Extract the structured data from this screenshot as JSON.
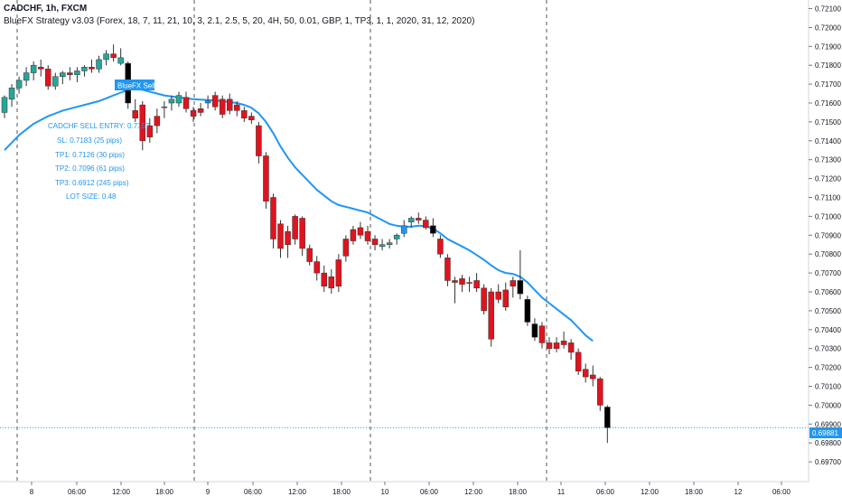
{
  "header": {
    "title": "CADCHF, 1h, FXCM",
    "indicator": "BlueFX Strategy v3.03 (Forex, 18, 7, 11, 21, 10, 3, 2.1, 2.5, 5, 20, 4H, 50, 0.01, GBP, 1, TP3, 1, 1, 2020, 31, 12, 2020)"
  },
  "colors": {
    "bull": "#26a69a",
    "bear": "#e0141e",
    "black": "#000000",
    "blue": "#2196f3",
    "ma": "#2196f3",
    "price_line": "#2196f3",
    "axis_text": "#131722",
    "session_line": "#555555"
  },
  "price_axis": {
    "labels": [
      "0.72100",
      "0.72000",
      "0.71900",
      "0.71800",
      "0.71700",
      "0.71600",
      "0.71500",
      "0.71400",
      "0.71300",
      "0.71200",
      "0.71100",
      "0.71000",
      "0.70900",
      "0.70800",
      "0.70700",
      "0.70600",
      "0.70500",
      "0.70400",
      "0.70300",
      "0.70200",
      "0.70100",
      "0.70000",
      "0.69900",
      "0.69800",
      "0.69700"
    ]
  },
  "time_axis": {
    "labels": [
      "8",
      "06:00",
      "12:00",
      "18:00",
      "9",
      "06:00",
      "12:00",
      "18:00",
      "10",
      "06:00",
      "12:00",
      "18:00",
      "11",
      "06:00",
      "12:00",
      "18:00",
      "12",
      "06:00"
    ]
  },
  "current_price": "0.69881",
  "annotations": {
    "signal_label": "BlueFX Sell",
    "entry": "CADCHF SELL ENTRY: 0.7157",
    "sl": "SL: 0.7183 (25 pips)",
    "tp1": "TP1: 0.7126 (30 pips)",
    "tp2": "TP2: 0.7096 (61 pips)",
    "tp3": "TP3: 0.6912 (245 pips)",
    "lot": "LOT SIZE: 0.48"
  },
  "chart_data": {
    "type": "candlestick",
    "timeframe": "1h",
    "y_range": [
      0.6965,
      0.7215
    ],
    "grid": false,
    "candles": [
      {
        "o": 0.7155,
        "h": 0.7164,
        "l": 0.7152,
        "c": 0.7163,
        "col": "bull"
      },
      {
        "o": 0.7162,
        "h": 0.717,
        "l": 0.7158,
        "c": 0.7168,
        "col": "bull"
      },
      {
        "o": 0.7168,
        "h": 0.7174,
        "l": 0.7165,
        "c": 0.7172,
        "col": "bull"
      },
      {
        "o": 0.7172,
        "h": 0.7179,
        "l": 0.7169,
        "c": 0.7176,
        "col": "bull"
      },
      {
        "o": 0.7176,
        "h": 0.7182,
        "l": 0.7172,
        "c": 0.718,
        "col": "bull"
      },
      {
        "o": 0.7179,
        "h": 0.7183,
        "l": 0.7174,
        "c": 0.7178,
        "col": "bear"
      },
      {
        "o": 0.7178,
        "h": 0.718,
        "l": 0.7167,
        "c": 0.7169,
        "col": "bear"
      },
      {
        "o": 0.7169,
        "h": 0.7176,
        "l": 0.7167,
        "c": 0.7174,
        "col": "bull"
      },
      {
        "o": 0.7174,
        "h": 0.7177,
        "l": 0.717,
        "c": 0.7176,
        "col": "bull"
      },
      {
        "o": 0.7176,
        "h": 0.7179,
        "l": 0.7172,
        "c": 0.7175,
        "col": "bear"
      },
      {
        "o": 0.7175,
        "h": 0.7179,
        "l": 0.7171,
        "c": 0.7177,
        "col": "bull"
      },
      {
        "o": 0.7177,
        "h": 0.718,
        "l": 0.7174,
        "c": 0.7179,
        "col": "bull"
      },
      {
        "o": 0.7179,
        "h": 0.7183,
        "l": 0.7176,
        "c": 0.7178,
        "col": "bear"
      },
      {
        "o": 0.7178,
        "h": 0.7185,
        "l": 0.7176,
        "c": 0.7183,
        "col": "bull"
      },
      {
        "o": 0.7183,
        "h": 0.7188,
        "l": 0.718,
        "c": 0.7186,
        "col": "bull"
      },
      {
        "o": 0.7186,
        "h": 0.7191,
        "l": 0.7182,
        "c": 0.7184,
        "col": "bear"
      },
      {
        "o": 0.7184,
        "h": 0.7189,
        "l": 0.718,
        "c": 0.7181,
        "col": "bull"
      },
      {
        "o": 0.7181,
        "h": 0.7182,
        "l": 0.7157,
        "c": 0.716,
        "col": "black"
      },
      {
        "o": 0.7156,
        "h": 0.7162,
        "l": 0.715,
        "c": 0.7152,
        "col": "bear"
      },
      {
        "o": 0.7159,
        "h": 0.7161,
        "l": 0.7135,
        "c": 0.714,
        "col": "bear"
      },
      {
        "o": 0.7148,
        "h": 0.7152,
        "l": 0.7139,
        "c": 0.7142,
        "col": "bear"
      },
      {
        "o": 0.7153,
        "h": 0.7157,
        "l": 0.7144,
        "c": 0.7148,
        "col": "bear"
      },
      {
        "o": 0.7158,
        "h": 0.7161,
        "l": 0.7152,
        "c": 0.7158,
        "col": "bull"
      },
      {
        "o": 0.716,
        "h": 0.7164,
        "l": 0.7156,
        "c": 0.7162,
        "col": "bull"
      },
      {
        "o": 0.716,
        "h": 0.7166,
        "l": 0.7158,
        "c": 0.7164,
        "col": "bull"
      },
      {
        "o": 0.7163,
        "h": 0.7166,
        "l": 0.7155,
        "c": 0.7157,
        "col": "bear"
      },
      {
        "o": 0.7156,
        "h": 0.7158,
        "l": 0.715,
        "c": 0.7153,
        "col": "bear"
      },
      {
        "o": 0.7157,
        "h": 0.716,
        "l": 0.7153,
        "c": 0.7155,
        "col": "bear"
      },
      {
        "o": 0.716,
        "h": 0.7164,
        "l": 0.7157,
        "c": 0.7161,
        "col": "blue"
      },
      {
        "o": 0.7164,
        "h": 0.7166,
        "l": 0.7156,
        "c": 0.7158,
        "col": "bear"
      },
      {
        "o": 0.7162,
        "h": 0.7164,
        "l": 0.7152,
        "c": 0.7154,
        "col": "bear"
      },
      {
        "o": 0.7162,
        "h": 0.7165,
        "l": 0.7154,
        "c": 0.7156,
        "col": "bear"
      },
      {
        "o": 0.7159,
        "h": 0.7161,
        "l": 0.7153,
        "c": 0.7156,
        "col": "bear"
      },
      {
        "o": 0.7156,
        "h": 0.7158,
        "l": 0.715,
        "c": 0.7152,
        "col": "bear"
      },
      {
        "o": 0.7153,
        "h": 0.7155,
        "l": 0.7149,
        "c": 0.7151,
        "col": "bear"
      },
      {
        "o": 0.7148,
        "h": 0.715,
        "l": 0.7128,
        "c": 0.7132,
        "col": "bear"
      },
      {
        "o": 0.7132,
        "h": 0.7134,
        "l": 0.7104,
        "c": 0.7108,
        "col": "bear"
      },
      {
        "o": 0.711,
        "h": 0.7112,
        "l": 0.7083,
        "c": 0.7088,
        "col": "bear"
      },
      {
        "o": 0.7096,
        "h": 0.7098,
        "l": 0.7078,
        "c": 0.7083,
        "col": "bear"
      },
      {
        "o": 0.7085,
        "h": 0.7095,
        "l": 0.7078,
        "c": 0.7092,
        "col": "bear"
      },
      {
        "o": 0.71,
        "h": 0.7101,
        "l": 0.7085,
        "c": 0.7088,
        "col": "bear"
      },
      {
        "o": 0.7099,
        "h": 0.71,
        "l": 0.7079,
        "c": 0.7083,
        "col": "bear"
      },
      {
        "o": 0.7083,
        "h": 0.7085,
        "l": 0.7074,
        "c": 0.7076,
        "col": "bear"
      },
      {
        "o": 0.7076,
        "h": 0.7079,
        "l": 0.7066,
        "c": 0.707,
        "col": "bear"
      },
      {
        "o": 0.707,
        "h": 0.7074,
        "l": 0.706,
        "c": 0.7063,
        "col": "bear"
      },
      {
        "o": 0.7068,
        "h": 0.7072,
        "l": 0.7059,
        "c": 0.7062,
        "col": "bear"
      },
      {
        "o": 0.7063,
        "h": 0.708,
        "l": 0.706,
        "c": 0.7077,
        "col": "bear"
      },
      {
        "o": 0.7079,
        "h": 0.709,
        "l": 0.7076,
        "c": 0.7088,
        "col": "bear"
      },
      {
        "o": 0.7087,
        "h": 0.7095,
        "l": 0.7085,
        "c": 0.7093,
        "col": "bear"
      },
      {
        "o": 0.7094,
        "h": 0.7097,
        "l": 0.7088,
        "c": 0.709,
        "col": "bear"
      },
      {
        "o": 0.7092,
        "h": 0.7095,
        "l": 0.7085,
        "c": 0.7087,
        "col": "bear"
      },
      {
        "o": 0.7088,
        "h": 0.709,
        "l": 0.7082,
        "c": 0.7085,
        "col": "bear"
      },
      {
        "o": 0.7085,
        "h": 0.7088,
        "l": 0.7082,
        "c": 0.7084,
        "col": "bull"
      },
      {
        "o": 0.7085,
        "h": 0.7088,
        "l": 0.7083,
        "c": 0.7086,
        "col": "bull"
      },
      {
        "o": 0.7088,
        "h": 0.7091,
        "l": 0.7085,
        "c": 0.709,
        "col": "bull"
      },
      {
        "o": 0.7091,
        "h": 0.7098,
        "l": 0.7089,
        "c": 0.7095,
        "col": "blue"
      },
      {
        "o": 0.7097,
        "h": 0.71,
        "l": 0.7094,
        "c": 0.7099,
        "col": "bull"
      },
      {
        "o": 0.7099,
        "h": 0.7102,
        "l": 0.7096,
        "c": 0.7098,
        "col": "bear"
      },
      {
        "o": 0.7098,
        "h": 0.71,
        "l": 0.7093,
        "c": 0.7094,
        "col": "bear"
      },
      {
        "o": 0.7095,
        "h": 0.7099,
        "l": 0.7089,
        "c": 0.7091,
        "col": "black"
      },
      {
        "o": 0.7088,
        "h": 0.709,
        "l": 0.7078,
        "c": 0.708,
        "col": "bear"
      },
      {
        "o": 0.7078,
        "h": 0.708,
        "l": 0.7063,
        "c": 0.7066,
        "col": "bear"
      },
      {
        "o": 0.7066,
        "h": 0.7068,
        "l": 0.7054,
        "c": 0.7065,
        "col": "bear"
      },
      {
        "o": 0.7067,
        "h": 0.7069,
        "l": 0.706,
        "c": 0.7064,
        "col": "bear"
      },
      {
        "o": 0.7065,
        "h": 0.7068,
        "l": 0.706,
        "c": 0.7065,
        "col": "bear"
      },
      {
        "o": 0.7066,
        "h": 0.707,
        "l": 0.706,
        "c": 0.7062,
        "col": "bear"
      },
      {
        "o": 0.7062,
        "h": 0.7064,
        "l": 0.7048,
        "c": 0.705,
        "col": "bear"
      },
      {
        "o": 0.706,
        "h": 0.7062,
        "l": 0.7031,
        "c": 0.7035,
        "col": "bear"
      },
      {
        "o": 0.7056,
        "h": 0.7064,
        "l": 0.7054,
        "c": 0.706,
        "col": "bear"
      },
      {
        "o": 0.7061,
        "h": 0.7065,
        "l": 0.705,
        "c": 0.7052,
        "col": "bear"
      },
      {
        "o": 0.7063,
        "h": 0.7068,
        "l": 0.7057,
        "c": 0.7066,
        "col": "bear"
      },
      {
        "o": 0.7066,
        "h": 0.7082,
        "l": 0.7056,
        "c": 0.7059,
        "col": "black"
      },
      {
        "o": 0.7056,
        "h": 0.7058,
        "l": 0.7042,
        "c": 0.7044,
        "col": "black"
      },
      {
        "o": 0.7043,
        "h": 0.7046,
        "l": 0.7034,
        "c": 0.7036,
        "col": "black"
      },
      {
        "o": 0.7042,
        "h": 0.7044,
        "l": 0.703,
        "c": 0.7033,
        "col": "bear"
      },
      {
        "o": 0.7033,
        "h": 0.7036,
        "l": 0.7027,
        "c": 0.703,
        "col": "bear"
      },
      {
        "o": 0.703,
        "h": 0.7036,
        "l": 0.7028,
        "c": 0.7033,
        "col": "bear"
      },
      {
        "o": 0.7034,
        "h": 0.7039,
        "l": 0.703,
        "c": 0.7032,
        "col": "bear"
      },
      {
        "o": 0.7033,
        "h": 0.7035,
        "l": 0.7024,
        "c": 0.7028,
        "col": "bear"
      },
      {
        "o": 0.7028,
        "h": 0.703,
        "l": 0.7016,
        "c": 0.7018,
        "col": "bear"
      },
      {
        "o": 0.7019,
        "h": 0.7022,
        "l": 0.7012,
        "c": 0.7015,
        "col": "bear"
      },
      {
        "o": 0.7016,
        "h": 0.7021,
        "l": 0.701,
        "c": 0.7014,
        "col": "bear"
      },
      {
        "o": 0.7014,
        "h": 0.7015,
        "l": 0.6997,
        "c": 0.7,
        "col": "bear"
      },
      {
        "o": 0.6999,
        "h": 0.7,
        "l": 0.698,
        "c": 0.69881,
        "col": "black"
      }
    ],
    "moving_average": [
      0.7135,
      0.7139,
      0.7143,
      0.7146,
      0.7149,
      0.7151,
      0.7153,
      0.71545,
      0.7156,
      0.7157,
      0.7158,
      0.7159,
      0.716,
      0.7161,
      0.71625,
      0.7164,
      0.71655,
      0.7167,
      0.71675,
      0.7167,
      0.7166,
      0.7165,
      0.7164,
      0.71635,
      0.7163,
      0.71625,
      0.7162,
      0.71618,
      0.71616,
      0.71614,
      0.7161,
      0.71605,
      0.716,
      0.7159,
      0.71575,
      0.71545,
      0.715,
      0.7144,
      0.7137,
      0.7131,
      0.7126,
      0.7122,
      0.7118,
      0.7114,
      0.7111,
      0.7108,
      0.7106,
      0.7105,
      0.7104,
      0.7103,
      0.7102,
      0.71,
      0.7098,
      0.7096,
      0.7095,
      0.70945,
      0.70945,
      0.7095,
      0.70948,
      0.70935,
      0.7091,
      0.7088,
      0.7086,
      0.7084,
      0.7082,
      0.70795,
      0.7077,
      0.7074,
      0.70715,
      0.707,
      0.70695,
      0.7068,
      0.7065,
      0.7061,
      0.7057,
      0.7054,
      0.7051,
      0.7048,
      0.7045,
      0.7041,
      0.7037,
      0.7034
    ]
  }
}
